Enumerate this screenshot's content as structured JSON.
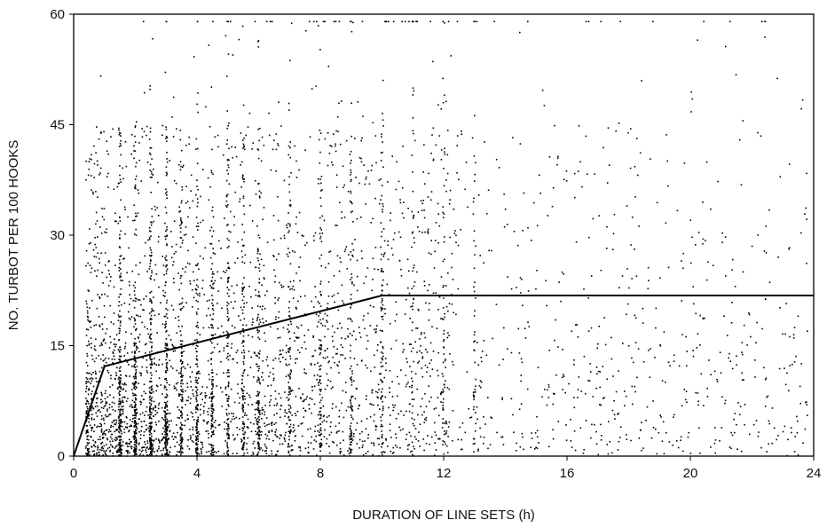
{
  "chart_data": {
    "type": "scatter",
    "title": "",
    "xlabel": "DURATION OF LINE SETS (h)",
    "ylabel": "NO. TURBOT PER 100 HOOKS",
    "xlim": [
      0,
      24
    ],
    "ylim": [
      0,
      60
    ],
    "x_ticks": [
      0,
      4,
      8,
      12,
      16,
      20,
      24
    ],
    "y_ticks": [
      0,
      15,
      30,
      45,
      60
    ],
    "x_tick_labels": [
      "0",
      "4",
      "8",
      "12",
      "16",
      "20",
      "24"
    ],
    "y_tick_labels": [
      "0",
      "15",
      "30",
      "45",
      "60"
    ],
    "grid": false,
    "legend": "none",
    "point_color": "#000000",
    "fitted_line": {
      "description_type": "piecewise-linear",
      "x": [
        0,
        1,
        10,
        24
      ],
      "y": [
        0,
        12.2,
        21.8,
        21.8
      ],
      "color": "#000000"
    },
    "scatter_summary": {
      "approx_point_count": 6000,
      "dense_x_range": [
        0.5,
        12
      ],
      "sparse_x_range": [
        12,
        24
      ],
      "y_range": [
        0,
        59
      ],
      "vertical_columns_at_x": [
        1.5,
        2,
        2.5,
        3,
        3.5,
        4,
        4.5,
        5,
        5.5,
        6,
        7,
        8,
        9,
        10,
        11,
        12,
        13
      ]
    }
  }
}
